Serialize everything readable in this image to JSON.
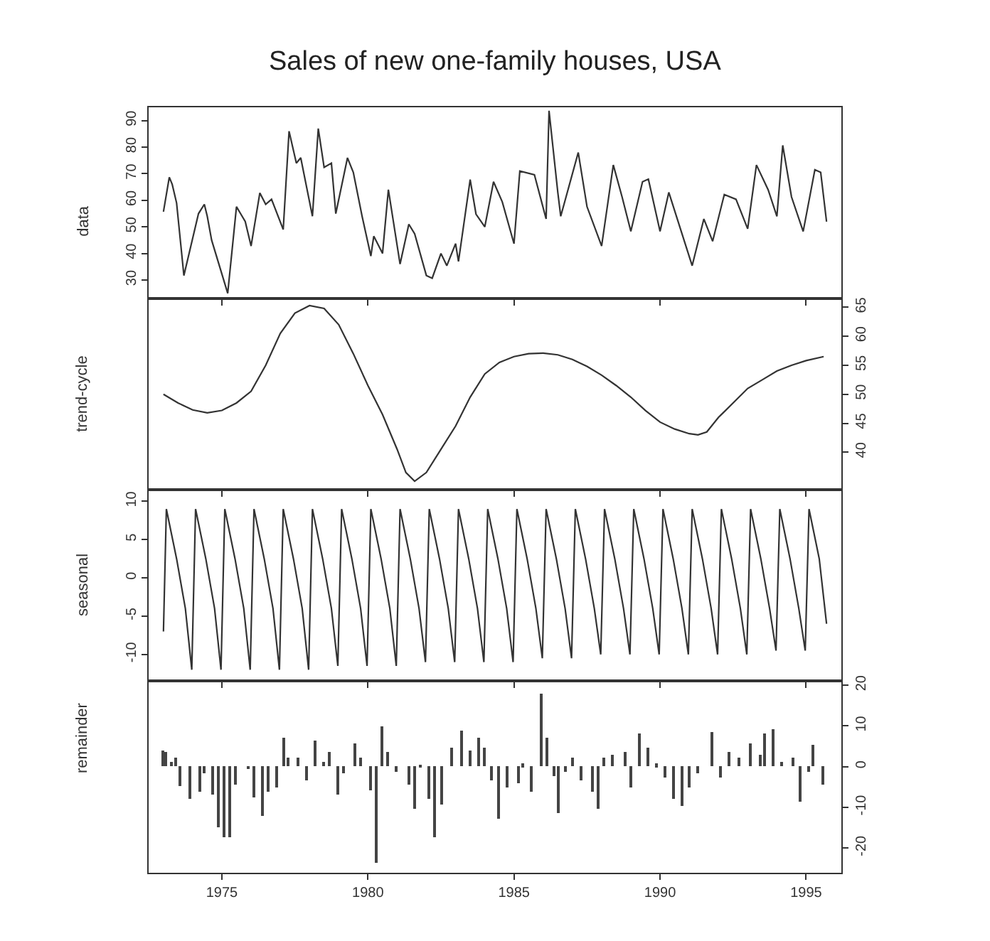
{
  "chart_data": [
    {
      "type": "line",
      "title": "Sales of new one-family houses, USA",
      "ylabel": "data",
      "color": "#333333",
      "xlim": [
        1972.5,
        1996.2
      ],
      "xticks": [
        {
          "value": 1975,
          "label": null
        },
        {
          "value": 1980,
          "label": null
        },
        {
          "value": 1985,
          "label": null
        },
        {
          "value": 1990,
          "label": null
        },
        {
          "value": 1995,
          "label": null
        }
      ],
      "ylim": [
        23,
        95
      ],
      "yticks": [
        30,
        40,
        50,
        60,
        70,
        80,
        90
      ],
      "tick_labels": "y",
      "x": [
        1973.0,
        1973.2,
        1973.3,
        1973.45,
        1973.7,
        1974.2,
        1974.4,
        1974.5,
        1974.65,
        1975.2,
        1975.5,
        1975.65,
        1975.8,
        1976.0,
        1976.3,
        1976.5,
        1976.7,
        1977.1,
        1977.3,
        1977.55,
        1977.7,
        1978.1,
        1978.3,
        1978.5,
        1978.75,
        1978.9,
        1979.3,
        1979.5,
        1979.8,
        1980.1,
        1980.2,
        1980.5,
        1980.7,
        1981.1,
        1981.4,
        1981.6,
        1982.0,
        1982.2,
        1982.5,
        1982.7,
        1983.0,
        1983.1,
        1983.5,
        1983.7,
        1984.0,
        1984.3,
        1984.6,
        1985.0,
        1985.2,
        1985.7,
        1986.1,
        1986.2,
        1986.5,
        1986.6,
        1987.2,
        1987.5,
        1988.0,
        1988.4,
        1988.7,
        1989.0,
        1989.4,
        1989.6,
        1990.0,
        1990.3,
        1991.1,
        1991.5,
        1991.8,
        1992.2,
        1992.6,
        1993.0,
        1993.3,
        1993.7,
        1994.0,
        1994.2,
        1994.5,
        1994.9,
        1995.3,
        1995.5,
        1995.7
      ],
      "values": [
        55.7,
        68.7,
        66,
        59,
        31.7,
        55,
        58.5,
        54,
        45,
        25,
        57.6,
        54.8,
        52,
        42.8,
        62.8,
        58.5,
        60.4,
        49,
        86,
        74,
        76,
        54,
        87,
        72.4,
        74,
        55,
        76,
        70.5,
        54,
        39,
        46.5,
        40,
        64,
        36,
        51,
        47.4,
        31.7,
        30.7,
        40,
        35.4,
        43.7,
        37,
        67.8,
        54.8,
        50,
        67,
        59.4,
        43.7,
        71,
        69.6,
        53,
        93.7,
        63,
        54,
        78,
        57.6,
        42.8,
        73.3,
        61.3,
        48.3,
        67,
        68,
        48.3,
        63,
        35.4,
        53,
        44.6,
        62.2,
        60.4,
        49.3,
        73.3,
        64,
        54,
        80.7,
        61.3,
        48.3,
        71.5,
        70.5,
        52
      ]
    },
    {
      "type": "line",
      "ylabel": "trend-cycle",
      "color": "#333333",
      "xlim": [
        1972.5,
        1996.2
      ],
      "xticks": [
        {
          "value": 1975,
          "label": null
        },
        {
          "value": 1980,
          "label": null
        },
        {
          "value": 1985,
          "label": null
        },
        {
          "value": 1990,
          "label": null
        },
        {
          "value": 1995,
          "label": null
        }
      ],
      "ylim": [
        33.5,
        66.5
      ],
      "yticks": [
        40,
        45,
        50,
        55,
        60,
        65
      ],
      "tick_labels": "y",
      "x": [
        1973.0,
        1973.5,
        1974.0,
        1974.5,
        1975.0,
        1975.5,
        1976.0,
        1976.5,
        1977.0,
        1977.5,
        1978.0,
        1978.5,
        1979.0,
        1979.5,
        1980.0,
        1980.5,
        1981.0,
        1981.3,
        1981.6,
        1982.0,
        1982.5,
        1983.0,
        1983.5,
        1984.0,
        1984.5,
        1985.0,
        1985.5,
        1986.0,
        1986.5,
        1987.0,
        1987.5,
        1988.0,
        1988.5,
        1989.0,
        1989.5,
        1990.0,
        1990.5,
        1991.0,
        1991.3,
        1991.6,
        1992.0,
        1992.5,
        1993.0,
        1993.5,
        1994.0,
        1994.5,
        1995.0,
        1995.6
      ],
      "values": [
        50,
        48.5,
        47.3,
        46.8,
        47.2,
        48.5,
        50.5,
        55,
        60.5,
        64,
        65.3,
        64.8,
        62,
        57,
        51.5,
        46.5,
        40.5,
        36.5,
        35,
        36.5,
        40.5,
        44.5,
        49.5,
        53.5,
        55.5,
        56.5,
        57,
        57.1,
        56.8,
        56,
        54.8,
        53.3,
        51.5,
        49.5,
        47.2,
        45.2,
        44,
        43.2,
        43,
        43.5,
        46,
        48.5,
        51,
        52.5,
        54,
        55,
        55.8,
        56.5
      ]
    },
    {
      "type": "line",
      "ylabel": "seasonal",
      "color": "#333333",
      "xlim": [
        1972.5,
        1996.2
      ],
      "xticks": [
        {
          "value": 1975,
          "label": null
        },
        {
          "value": 1980,
          "label": null
        },
        {
          "value": 1985,
          "label": null
        },
        {
          "value": 1990,
          "label": null
        },
        {
          "value": 1995,
          "label": null
        }
      ],
      "ylim": [
        -13.5,
        11.5
      ],
      "yticks": [
        -10,
        -5,
        0,
        5,
        10
      ],
      "tick_labels": "y",
      "x": [
        1973.0,
        1973.1,
        1973.45,
        1973.75,
        1973.97,
        1974.1,
        1974.45,
        1974.75,
        1974.97,
        1975.1,
        1975.45,
        1975.75,
        1975.97,
        1976.1,
        1976.45,
        1976.75,
        1976.97,
        1977.1,
        1977.45,
        1977.75,
        1977.97,
        1978.1,
        1978.45,
        1978.75,
        1978.97,
        1979.1,
        1979.45,
        1979.75,
        1979.97,
        1980.1,
        1980.45,
        1980.75,
        1980.97,
        1981.1,
        1981.45,
        1981.75,
        1981.97,
        1982.1,
        1982.45,
        1982.75,
        1982.97,
        1983.1,
        1983.45,
        1983.75,
        1983.97,
        1984.1,
        1984.45,
        1984.75,
        1984.97,
        1985.1,
        1985.45,
        1985.75,
        1985.97,
        1986.1,
        1986.45,
        1986.75,
        1986.97,
        1987.1,
        1987.45,
        1987.75,
        1987.97,
        1988.1,
        1988.45,
        1988.75,
        1988.97,
        1989.1,
        1989.45,
        1989.75,
        1989.97,
        1990.1,
        1990.45,
        1990.75,
        1990.97,
        1991.1,
        1991.45,
        1991.75,
        1991.97,
        1992.1,
        1992.45,
        1992.75,
        1992.97,
        1993.1,
        1993.45,
        1993.75,
        1993.97,
        1994.1,
        1994.45,
        1994.75,
        1994.97,
        1995.1,
        1995.45,
        1995.7
      ],
      "values": [
        -7,
        9,
        2.5,
        -4,
        -12,
        9,
        2.5,
        -4,
        -12,
        9,
        2.5,
        -4,
        -12,
        9,
        2.5,
        -4,
        -12,
        9,
        2.5,
        -4,
        -12,
        9,
        2.5,
        -4,
        -11.5,
        9,
        2.5,
        -4,
        -11.5,
        9,
        2.5,
        -4,
        -11.5,
        9,
        2.5,
        -4,
        -11,
        9,
        2.5,
        -4,
        -11,
        9,
        2.5,
        -4,
        -11,
        9,
        2.5,
        -4,
        -11,
        9,
        2.5,
        -4,
        -10.5,
        9,
        2.5,
        -4,
        -10.5,
        9,
        2.5,
        -4,
        -10,
        9,
        2.5,
        -4,
        -10,
        9,
        2.5,
        -4,
        -10,
        9,
        2.5,
        -4,
        -10,
        9,
        2.5,
        -4,
        -10,
        9,
        2.5,
        -4,
        -10,
        9,
        2.5,
        -4,
        -9.5,
        9,
        2.5,
        -4,
        -9.5,
        9,
        2.5,
        -6
      ]
    },
    {
      "type": "bar",
      "ylabel": "remainder",
      "color": "#444444",
      "xlim": [
        1972.5,
        1996.2
      ],
      "xticks": [
        1975,
        1980,
        1985,
        1990,
        1995
      ],
      "ylim": [
        -26,
        21
      ],
      "yticks": [
        -20,
        -10,
        0,
        10,
        20
      ],
      "x": [
        1973.0,
        1973.1,
        1973.3,
        1973.45,
        1973.6,
        1973.9,
        1974.25,
        1974.4,
        1974.7,
        1974.9,
        1975.1,
        1975.3,
        1975.5,
        1975.9,
        1976.1,
        1976.4,
        1976.6,
        1976.9,
        1977.15,
        1977.3,
        1977.6,
        1977.9,
        1978.2,
        1978.5,
        1978.7,
        1979.0,
        1979.2,
        1979.55,
        1979.75,
        1980.1,
        1980.3,
        1980.5,
        1980.7,
        1981.0,
        1981.4,
        1981.6,
        1981.8,
        1982.1,
        1982.3,
        1982.55,
        1982.9,
        1983.2,
        1983.5,
        1983.8,
        1984.0,
        1984.25,
        1984.5,
        1984.8,
        1985.15,
        1985.3,
        1985.6,
        1985.95,
        1986.15,
        1986.4,
        1986.55,
        1986.8,
        1987.0,
        1987.3,
        1987.7,
        1987.9,
        1988.1,
        1988.4,
        1988.8,
        1989.0,
        1989.3,
        1989.6,
        1989.9,
        1990.2,
        1990.5,
        1990.75,
        1991.0,
        1991.3,
        1991.8,
        1992.1,
        1992.4,
        1992.7,
        1993.1,
        1993.45,
        1993.6,
        1993.9,
        1994.2,
        1994.55,
        1994.8,
        1995.1,
        1995.25,
        1995.6
      ],
      "values": [
        4,
        3.5,
        1.2,
        2,
        -5,
        -8,
        -6.4,
        -1.7,
        -7,
        -15,
        -17.4,
        -17.4,
        -4.6,
        -0.6,
        -7.5,
        -12.2,
        -6.4,
        -5.2,
        7,
        2.3,
        2.3,
        -3.5,
        6.4,
        1.2,
        3.5,
        -7,
        -1.7,
        5.8,
        2.3,
        -5.8,
        -23.8,
        9.9,
        3.5,
        -1.2,
        -4.6,
        -10.5,
        0.5,
        -8,
        -17.4,
        -9.3,
        4.7,
        8.7,
        4,
        7,
        4.7,
        -3.5,
        -12.8,
        -5.2,
        -4,
        0.6,
        -6.4,
        18,
        7,
        -2.3,
        -11.6,
        -1.2,
        2.3,
        -3.5,
        -6.4,
        -10.5,
        2.3,
        2.9,
        3.5,
        -5.2,
        8.1,
        4.7,
        0.6,
        -2.9,
        -8.1,
        -9.9,
        -5.2,
        -1.7,
        8.4,
        -2.9,
        3.5,
        2.3,
        5.8,
        2.9,
        8.1,
        9.3,
        1.2,
        2.3,
        -8.7,
        -1.2,
        5.2,
        -4.6
      ]
    }
  ]
}
